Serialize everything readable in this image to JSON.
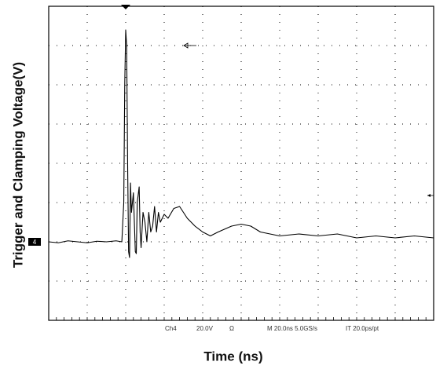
{
  "chart_data": {
    "type": "line",
    "y_label": "Trigger and Clamping Voltage(V)",
    "x_label": "Time (ns)",
    "ground_marker": "4",
    "readout": [
      "Ch4",
      "20.0V",
      "Ω",
      "M 20.0ns 5.0GS/s",
      "IT 20.0ps/pt"
    ],
    "color": "#000000",
    "xlim": [
      0,
      200
    ],
    "ylim": [
      -40,
      120
    ],
    "x": [
      0,
      5,
      10,
      15,
      20,
      25,
      30,
      35,
      38,
      39,
      39.5,
      40,
      40.5,
      41,
      41.5,
      42,
      42.5,
      43,
      44,
      45,
      45.5,
      46,
      47,
      47.5,
      48,
      49,
      50,
      51,
      52,
      53,
      54,
      55,
      56,
      57,
      58,
      60,
      62,
      65,
      68,
      72,
      76,
      80,
      84,
      88,
      95,
      100,
      105,
      110,
      115,
      120,
      130,
      140,
      150,
      160,
      170,
      180,
      190,
      200
    ],
    "values": [
      0,
      -0.5,
      0.5,
      0,
      -0.5,
      0.3,
      0,
      0.5,
      0,
      20,
      80,
      108,
      100,
      40,
      -5,
      -8,
      30,
      15,
      25,
      -5,
      -6,
      20,
      28,
      5,
      -3,
      15,
      10,
      0,
      15,
      5,
      8,
      18,
      5,
      15,
      10,
      14,
      12,
      17,
      18,
      12,
      8,
      5,
      3,
      5,
      8,
      9,
      8,
      5,
      4,
      3,
      4,
      3,
      4,
      2,
      3,
      2,
      3,
      2
    ]
  }
}
